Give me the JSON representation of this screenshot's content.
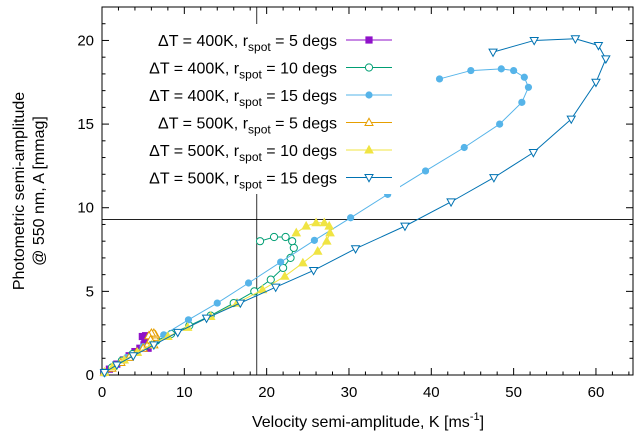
{
  "chart_data": {
    "type": "scatter",
    "xlabel": "Velocity semi-amplitude, K [ms",
    "xlabel_sup": "-1",
    "xlabel_end": "]",
    "ylabel_line1": "Photometric semi-amplitude",
    "ylabel_line2": "@ 550 nm, A [mmag]",
    "xlim": [
      0,
      64.5
    ],
    "ylim": [
      0,
      22
    ],
    "xticks": [
      "0",
      "10",
      "20",
      "30",
      "40",
      "50",
      "60"
    ],
    "yticks": [
      "0",
      "5",
      "10",
      "15",
      "20"
    ],
    "reference_lines": {
      "x": 18.8,
      "y": 9.3
    },
    "legend_position": "top-left",
    "series": [
      {
        "name": "ΔT = 400K, r_spot = 5 degs",
        "legend": {
          "pre": "ΔT = 400K, r",
          "sub": "spot",
          "post": " =  5 degs"
        },
        "color": "#8f12c9",
        "marker": "square-filled",
        "x": [
          0.2,
          0.9,
          1.8,
          2.6,
          3.3,
          4.0,
          4.6,
          5.1,
          5.5,
          5.8,
          5.9,
          5.7,
          5.3,
          4.9,
          5.2,
          5.6
        ],
        "y": [
          0.15,
          0.35,
          0.65,
          0.9,
          1.15,
          1.4,
          1.6,
          1.8,
          2.0,
          2.1,
          2.2,
          2.3,
          2.35,
          2.3,
          2.1,
          1.6
        ]
      },
      {
        "name": "ΔT = 400K, r_spot = 10 degs",
        "legend": {
          "pre": "ΔT = 400K, r",
          "sub": "spot",
          "post": " = 10 degs"
        },
        "color": "#009e73",
        "marker": "circle-open",
        "x": [
          0.3,
          1.2,
          2.4,
          3.7,
          5.1,
          6.6,
          8.4,
          10.6,
          13.2,
          16.0,
          18.5,
          20.5,
          22.0,
          22.9,
          23.3,
          23.1,
          22.3,
          20.9,
          19.2
        ],
        "y": [
          0.15,
          0.45,
          0.85,
          1.25,
          1.65,
          2.05,
          2.45,
          2.95,
          3.55,
          4.3,
          5.0,
          5.7,
          6.4,
          7.0,
          7.6,
          8.0,
          8.25,
          8.25,
          8.0
        ]
      },
      {
        "name": "ΔT = 400K, r_spot = 15 degs",
        "legend": {
          "pre": "ΔT = 400K, r",
          "sub": "spot",
          "post": " = 15 degs"
        },
        "color": "#56b4e9",
        "marker": "circle-filled",
        "x": [
          0.3,
          1.5,
          3.0,
          5.0,
          7.5,
          10.5,
          14.0,
          17.8,
          21.7,
          25.8,
          30.2,
          34.7,
          39.3,
          44.0,
          48.3,
          51.0,
          51.8,
          51.3,
          50.0,
          48.5,
          44.8,
          41.0
        ],
        "y": [
          0.15,
          0.55,
          1.05,
          1.7,
          2.4,
          3.3,
          4.3,
          5.5,
          6.75,
          8.05,
          9.4,
          10.8,
          12.2,
          13.6,
          15.0,
          16.3,
          17.2,
          17.8,
          18.2,
          18.3,
          18.2,
          17.7
        ]
      },
      {
        "name": "ΔT = 500K, r_spot = 5 degs",
        "legend": {
          "pre": "ΔT = 500K, r",
          "sub": "spot",
          "post": " =  5 degs"
        },
        "color": "#e69f00",
        "marker": "triangle-open",
        "x": [
          0.3,
          1.2,
          2.3,
          3.3,
          4.2,
          5.0,
          5.6,
          6.1,
          6.4,
          6.5,
          6.3,
          6.0,
          5.7,
          5.9,
          6.3
        ],
        "y": [
          0.15,
          0.4,
          0.75,
          1.05,
          1.35,
          1.6,
          1.85,
          2.05,
          2.25,
          2.4,
          2.5,
          2.5,
          2.35,
          2.1,
          1.8
        ]
      },
      {
        "name": "ΔT = 500K, r_spot = 10 degs",
        "legend": {
          "pre": "ΔT = 500K, r",
          "sub": "spot",
          "post": " = 10 degs"
        },
        "color": "#f0e442",
        "marker": "triangle-filled",
        "x": [
          0.3,
          1.3,
          2.7,
          4.3,
          6.0,
          8.0,
          10.4,
          13.2,
          16.4,
          19.5,
          22.2,
          24.4,
          26.2,
          27.3,
          27.7,
          27.6,
          27.0,
          26.0,
          24.8,
          23.6
        ],
        "y": [
          0.15,
          0.5,
          0.9,
          1.35,
          1.8,
          2.3,
          2.85,
          3.5,
          4.3,
          5.1,
          5.9,
          6.7,
          7.4,
          8.0,
          8.5,
          8.9,
          9.1,
          9.1,
          8.9,
          8.5
        ]
      },
      {
        "name": "ΔT = 500K, r_spot = 15 degs",
        "legend": {
          "pre": "ΔT = 500K, r",
          "sub": "spot",
          "post": " = 15 degs"
        },
        "color": "#0072b2",
        "marker": "triangle-down-open",
        "x": [
          0.3,
          1.8,
          3.8,
          6.3,
          9.2,
          12.7,
          16.8,
          21.1,
          25.7,
          30.8,
          36.8,
          42.4,
          47.6,
          52.4,
          57.0,
          60.0,
          61.2,
          60.3,
          57.5,
          52.5,
          47.5
        ],
        "y": [
          0.15,
          0.6,
          1.15,
          1.8,
          2.55,
          3.4,
          4.3,
          5.25,
          6.25,
          7.55,
          8.9,
          10.35,
          11.8,
          13.3,
          15.3,
          17.5,
          18.9,
          19.7,
          20.1,
          20.0,
          19.3
        ]
      }
    ]
  }
}
